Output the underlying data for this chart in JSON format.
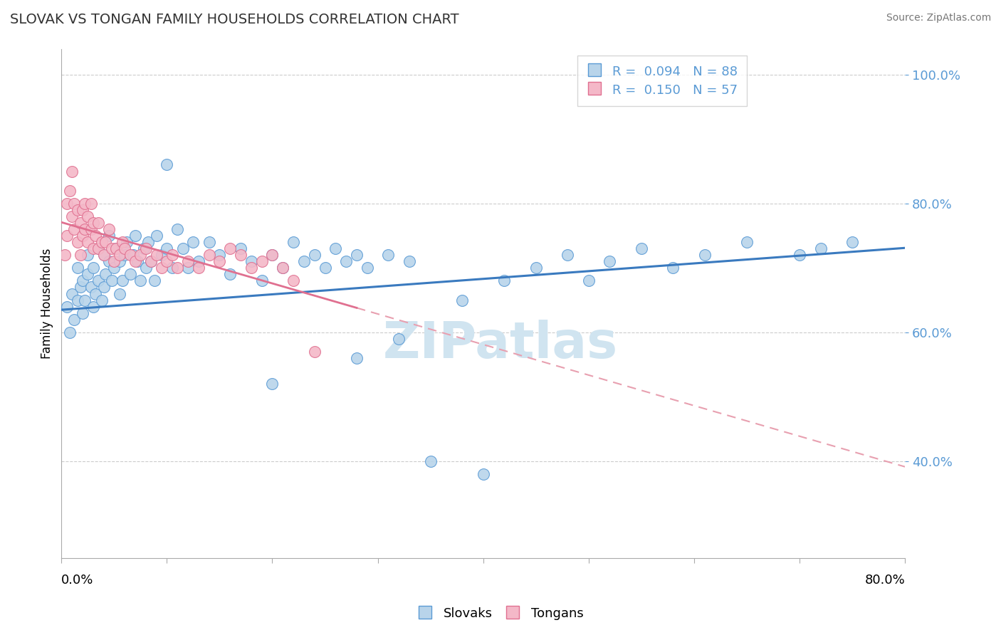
{
  "title": "SLOVAK VS TONGAN FAMILY HOUSEHOLDS CORRELATION CHART",
  "source": "Source: ZipAtlas.com",
  "ylabel": "Family Households",
  "xlim": [
    0.0,
    0.8
  ],
  "ylim": [
    0.25,
    1.04
  ],
  "yticks": [
    0.4,
    0.6,
    0.8,
    1.0
  ],
  "ytick_labels": [
    "40.0%",
    "60.0%",
    "80.0%",
    "100.0%"
  ],
  "legend_blue_text": "R =  0.094   N = 88",
  "legend_pink_text": "R =  0.150   N = 57",
  "blue_marker_face": "#b8d4ea",
  "blue_marker_edge": "#5b9bd5",
  "pink_marker_face": "#f4b8c8",
  "pink_marker_edge": "#e07090",
  "blue_line_color": "#3a7abf",
  "pink_line_color": "#e07090",
  "pink_dash_color": "#e8a0b0",
  "watermark_color": "#d0e4f0",
  "blue_scatter_x": [
    0.005,
    0.008,
    0.01,
    0.012,
    0.015,
    0.015,
    0.018,
    0.02,
    0.02,
    0.022,
    0.025,
    0.025,
    0.028,
    0.03,
    0.03,
    0.032,
    0.035,
    0.035,
    0.038,
    0.04,
    0.04,
    0.042,
    0.045,
    0.045,
    0.048,
    0.05,
    0.052,
    0.055,
    0.055,
    0.058,
    0.06,
    0.062,
    0.065,
    0.068,
    0.07,
    0.072,
    0.075,
    0.078,
    0.08,
    0.082,
    0.085,
    0.088,
    0.09,
    0.095,
    0.1,
    0.105,
    0.11,
    0.115,
    0.12,
    0.125,
    0.13,
    0.14,
    0.15,
    0.16,
    0.17,
    0.18,
    0.19,
    0.2,
    0.21,
    0.22,
    0.23,
    0.24,
    0.25,
    0.26,
    0.27,
    0.28,
    0.29,
    0.31,
    0.33,
    0.38,
    0.42,
    0.45,
    0.48,
    0.5,
    0.52,
    0.55,
    0.58,
    0.61,
    0.65,
    0.7,
    0.72,
    0.75,
    0.1,
    0.2,
    0.28,
    0.32,
    0.35,
    0.4
  ],
  "blue_scatter_y": [
    0.64,
    0.6,
    0.66,
    0.62,
    0.65,
    0.7,
    0.67,
    0.63,
    0.68,
    0.65,
    0.69,
    0.72,
    0.67,
    0.64,
    0.7,
    0.66,
    0.68,
    0.73,
    0.65,
    0.67,
    0.72,
    0.69,
    0.71,
    0.75,
    0.68,
    0.7,
    0.73,
    0.66,
    0.71,
    0.68,
    0.72,
    0.74,
    0.69,
    0.72,
    0.75,
    0.71,
    0.68,
    0.73,
    0.7,
    0.74,
    0.71,
    0.68,
    0.75,
    0.72,
    0.73,
    0.7,
    0.76,
    0.73,
    0.7,
    0.74,
    0.71,
    0.74,
    0.72,
    0.69,
    0.73,
    0.71,
    0.68,
    0.72,
    0.7,
    0.74,
    0.71,
    0.72,
    0.7,
    0.73,
    0.71,
    0.72,
    0.7,
    0.72,
    0.71,
    0.65,
    0.68,
    0.7,
    0.72,
    0.68,
    0.71,
    0.73,
    0.7,
    0.72,
    0.74,
    0.72,
    0.73,
    0.74,
    0.86,
    0.52,
    0.56,
    0.59,
    0.4,
    0.38
  ],
  "pink_scatter_x": [
    0.003,
    0.005,
    0.005,
    0.008,
    0.01,
    0.01,
    0.012,
    0.012,
    0.015,
    0.015,
    0.018,
    0.018,
    0.02,
    0.02,
    0.022,
    0.022,
    0.025,
    0.025,
    0.028,
    0.028,
    0.03,
    0.03,
    0.032,
    0.035,
    0.035,
    0.038,
    0.04,
    0.042,
    0.045,
    0.048,
    0.05,
    0.052,
    0.055,
    0.058,
    0.06,
    0.065,
    0.07,
    0.075,
    0.08,
    0.085,
    0.09,
    0.095,
    0.1,
    0.105,
    0.11,
    0.12,
    0.13,
    0.14,
    0.15,
    0.16,
    0.17,
    0.18,
    0.19,
    0.2,
    0.21,
    0.22,
    0.24
  ],
  "pink_scatter_y": [
    0.72,
    0.75,
    0.8,
    0.82,
    0.78,
    0.85,
    0.76,
    0.8,
    0.74,
    0.79,
    0.72,
    0.77,
    0.75,
    0.79,
    0.76,
    0.8,
    0.74,
    0.78,
    0.76,
    0.8,
    0.73,
    0.77,
    0.75,
    0.73,
    0.77,
    0.74,
    0.72,
    0.74,
    0.76,
    0.73,
    0.71,
    0.73,
    0.72,
    0.74,
    0.73,
    0.72,
    0.71,
    0.72,
    0.73,
    0.71,
    0.72,
    0.7,
    0.71,
    0.72,
    0.7,
    0.71,
    0.7,
    0.72,
    0.71,
    0.73,
    0.72,
    0.7,
    0.71,
    0.72,
    0.7,
    0.68,
    0.57
  ]
}
